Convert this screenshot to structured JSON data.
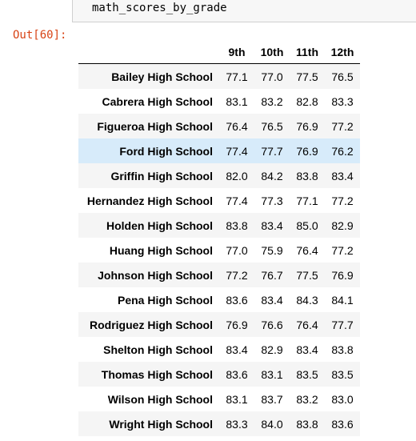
{
  "input_cell": {
    "code": "math_scores_by_grade"
  },
  "output": {
    "prompt": "Out[60]:",
    "columns": [
      "9th",
      "10th",
      "11th",
      "12th"
    ],
    "rows": [
      {
        "school": "Bailey High School",
        "values": [
          "77.1",
          "77.0",
          "77.5",
          "76.5"
        ]
      },
      {
        "school": "Cabrera High School",
        "values": [
          "83.1",
          "83.2",
          "82.8",
          "83.3"
        ]
      },
      {
        "school": "Figueroa High School",
        "values": [
          "76.4",
          "76.5",
          "76.9",
          "77.2"
        ]
      },
      {
        "school": "Ford High School",
        "values": [
          "77.4",
          "77.7",
          "76.9",
          "76.2"
        ]
      },
      {
        "school": "Griffin High School",
        "values": [
          "82.0",
          "84.2",
          "83.8",
          "83.4"
        ]
      },
      {
        "school": "Hernandez High School",
        "values": [
          "77.4",
          "77.3",
          "77.1",
          "77.2"
        ]
      },
      {
        "school": "Holden High School",
        "values": [
          "83.8",
          "83.4",
          "85.0",
          "82.9"
        ]
      },
      {
        "school": "Huang High School",
        "values": [
          "77.0",
          "75.9",
          "76.4",
          "77.2"
        ]
      },
      {
        "school": "Johnson High School",
        "values": [
          "77.2",
          "76.7",
          "77.5",
          "76.9"
        ]
      },
      {
        "school": "Pena High School",
        "values": [
          "83.6",
          "83.4",
          "84.3",
          "84.1"
        ]
      },
      {
        "school": "Rodriguez High School",
        "values": [
          "76.9",
          "76.6",
          "76.4",
          "77.7"
        ]
      },
      {
        "school": "Shelton High School",
        "values": [
          "83.4",
          "82.9",
          "83.4",
          "83.8"
        ]
      },
      {
        "school": "Thomas High School",
        "values": [
          "83.6",
          "83.1",
          "83.5",
          "83.5"
        ]
      },
      {
        "school": "Wilson High School",
        "values": [
          "83.1",
          "83.7",
          "83.2",
          "83.0"
        ]
      },
      {
        "school": "Wright High School",
        "values": [
          "83.3",
          "84.0",
          "83.8",
          "83.6"
        ]
      }
    ],
    "hovered_row": "Ford High School"
  },
  "colors": {
    "prompt_out": "#d84315",
    "row_hover": "#d7ebfa",
    "row_stripe": "#f5f5f5"
  }
}
